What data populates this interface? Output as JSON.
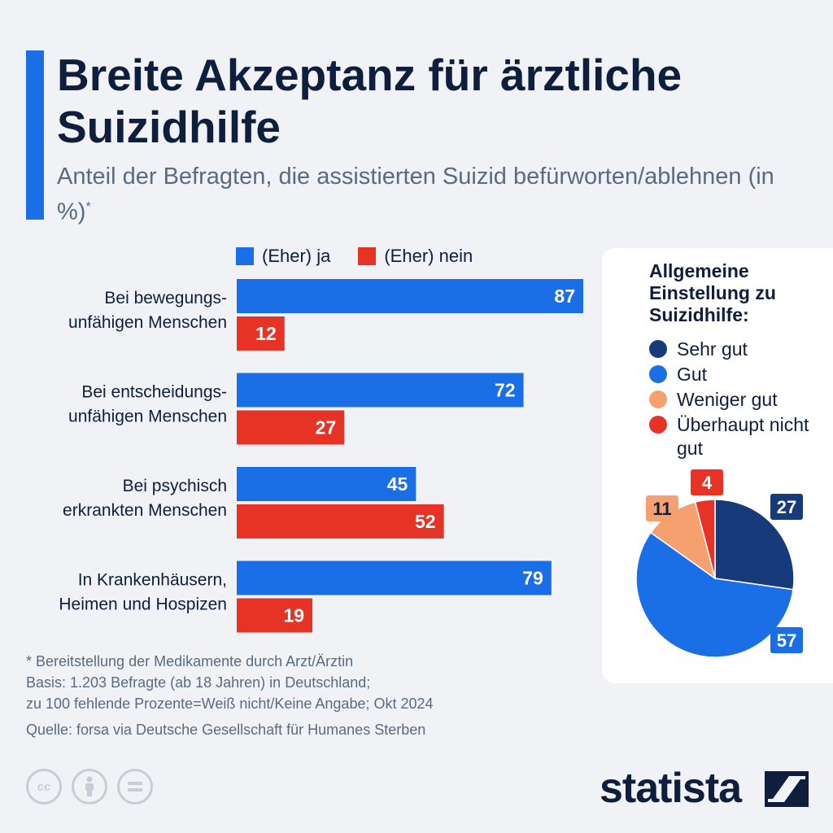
{
  "header": {
    "title": "Breite Akzeptanz für ärztliche Suizidhilfe",
    "subtitle": "Anteil der Befragten, die assistierten Suizid befürworten/ablehnen (in %)",
    "subtitle_mark": "*"
  },
  "legend": {
    "yes": "(Eher) ja",
    "no": "(Eher) nein"
  },
  "colors": {
    "yes": "#1a6ee6",
    "no": "#e63326",
    "sehr_gut": "#163a7a",
    "gut": "#1a6ee6",
    "weniger_gut": "#f5a06e",
    "ueberhaupt_nicht_gut": "#e63326"
  },
  "chart_data": [
    {
      "type": "bar",
      "orientation": "horizontal",
      "categories": [
        [
          "Bei bewegungs-",
          "unfähigen Menschen"
        ],
        [
          "Bei entscheidungs-",
          "unfähigen Menschen"
        ],
        [
          "Bei psychisch",
          "erkrankten Menschen"
        ],
        [
          "In Krankenhäusern,",
          "Heimen und Hospizen"
        ]
      ],
      "series": [
        {
          "name": "(Eher) ja",
          "values": [
            87,
            72,
            45,
            79
          ]
        },
        {
          "name": "(Eher) nein",
          "values": [
            12,
            27,
            52,
            19
          ]
        }
      ],
      "xlim": [
        0,
        87
      ],
      "legend": "top"
    },
    {
      "type": "pie",
      "title": "Allgemeine Einstellung zu Suizidhilfe:",
      "labels": [
        "Sehr gut",
        "Gut",
        "Weniger gut",
        "Überhaupt nicht gut"
      ],
      "values": [
        27,
        57,
        11,
        4
      ],
      "legend": "top"
    }
  ],
  "pie_card": {
    "title": "Allgemeine Einstellung zu Suizidhilfe:",
    "legend": [
      "Sehr gut",
      "Gut",
      "Weniger gut",
      "Überhaupt nicht gut"
    ]
  },
  "footer": {
    "note_lines": [
      "* Bereitstellung der Medikamente durch Arzt/Ärztin",
      "Basis: 1.203 Befragte (ab 18 Jahren) in Deutschland;",
      "zu 100 fehlende Prozente=Weiß nicht/Keine Angabe; Okt 2024"
    ],
    "source": "Quelle: forsa via Deutsche Gesellschaft für Humanes Sterben",
    "brand": "statista"
  }
}
